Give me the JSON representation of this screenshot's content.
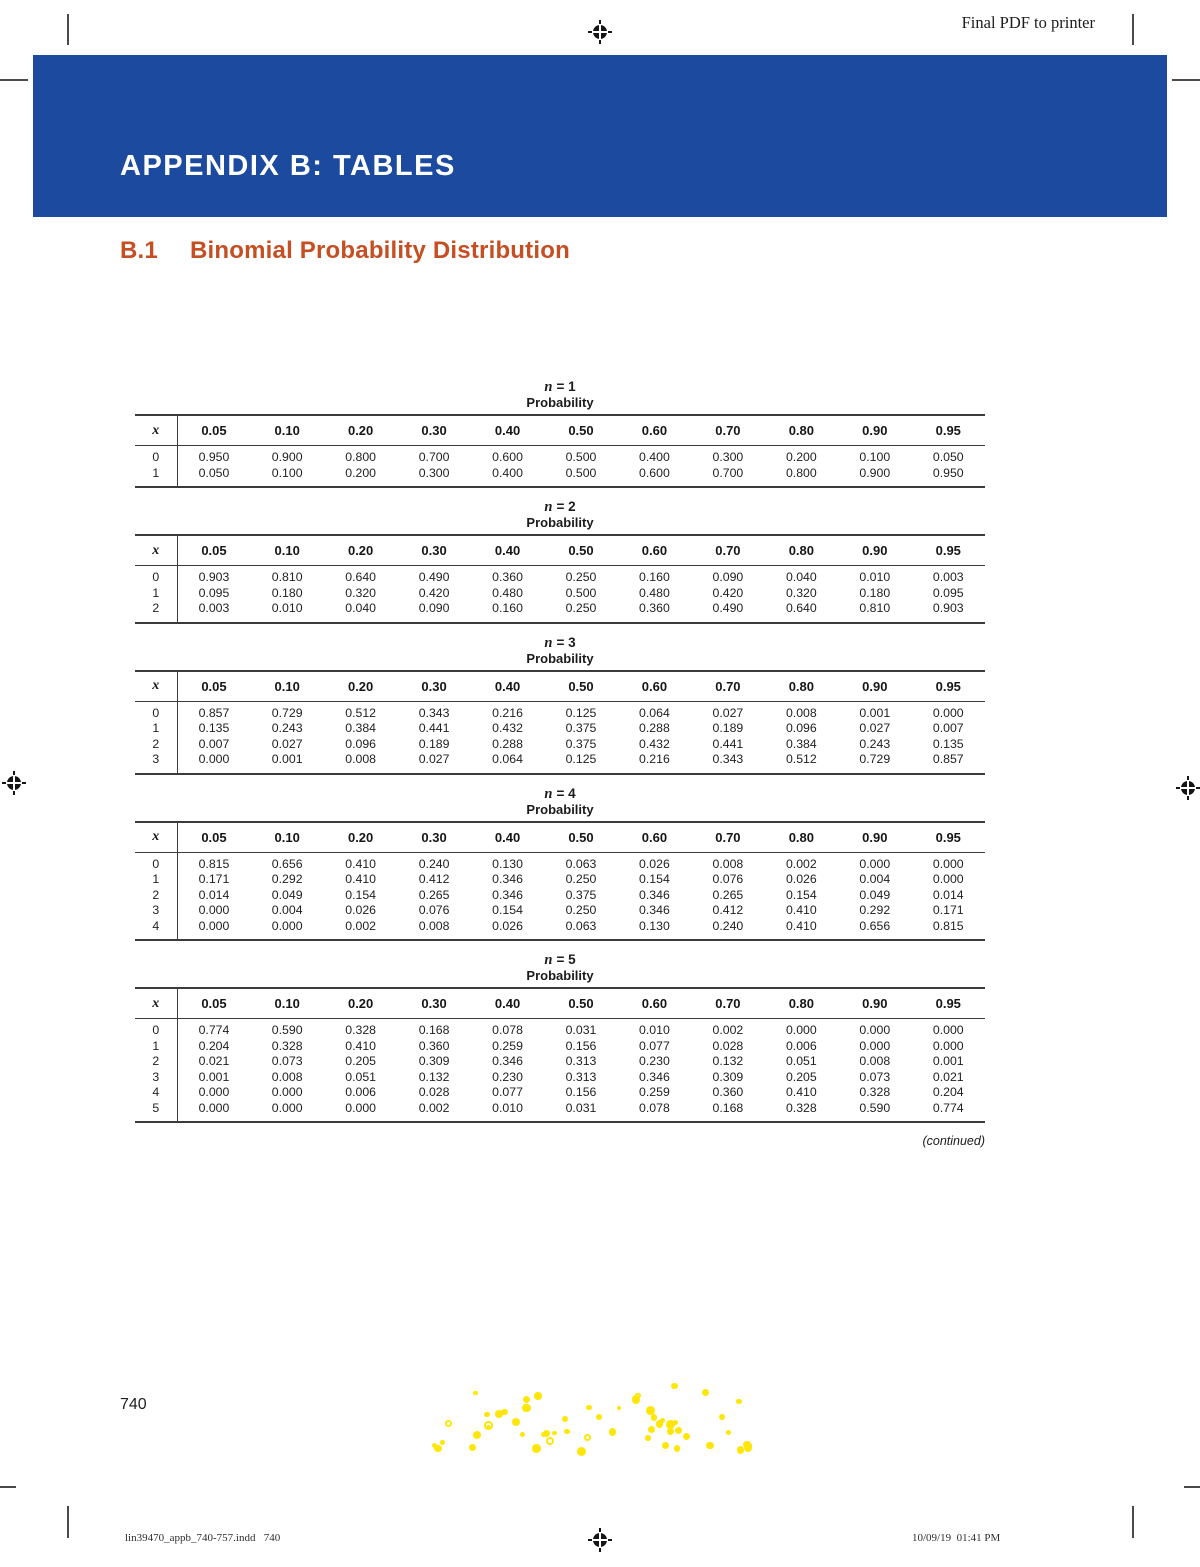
{
  "page": {
    "watermark": "Final PDF to printer",
    "page_number": "740",
    "continued": "(continued)",
    "footer_left": "lin39470_appb_740-757.indd   740",
    "footer_right": "10/09/19  01:41 PM"
  },
  "banner": {
    "title": "APPENDIX B: TABLES"
  },
  "section": {
    "number": "B.1",
    "title": "Binomial Probability Distribution"
  },
  "colors": {
    "banner_blue": "#1B4A9E",
    "heading_orange": "#C54E22",
    "rule_dark": "#3B3B3B",
    "dot_yellow": "#FFE60A"
  },
  "chart_data": [
    {
      "type": "table",
      "n_var": "n",
      "n_rest": "= 1",
      "subtitle": "Probability",
      "columns": [
        "x",
        "0.05",
        "0.10",
        "0.20",
        "0.30",
        "0.40",
        "0.50",
        "0.60",
        "0.70",
        "0.80",
        "0.90",
        "0.95"
      ],
      "rows": [
        [
          "0",
          "0.950",
          "0.900",
          "0.800",
          "0.700",
          "0.600",
          "0.500",
          "0.400",
          "0.300",
          "0.200",
          "0.100",
          "0.050"
        ],
        [
          "1",
          "0.050",
          "0.100",
          "0.200",
          "0.300",
          "0.400",
          "0.500",
          "0.600",
          "0.700",
          "0.800",
          "0.900",
          "0.950"
        ]
      ]
    },
    {
      "type": "table",
      "n_var": "n",
      "n_rest": "= 2",
      "subtitle": "Probability",
      "columns": [
        "x",
        "0.05",
        "0.10",
        "0.20",
        "0.30",
        "0.40",
        "0.50",
        "0.60",
        "0.70",
        "0.80",
        "0.90",
        "0.95"
      ],
      "rows": [
        [
          "0",
          "0.903",
          "0.810",
          "0.640",
          "0.490",
          "0.360",
          "0.250",
          "0.160",
          "0.090",
          "0.040",
          "0.010",
          "0.003"
        ],
        [
          "1",
          "0.095",
          "0.180",
          "0.320",
          "0.420",
          "0.480",
          "0.500",
          "0.480",
          "0.420",
          "0.320",
          "0.180",
          "0.095"
        ],
        [
          "2",
          "0.003",
          "0.010",
          "0.040",
          "0.090",
          "0.160",
          "0.250",
          "0.360",
          "0.490",
          "0.640",
          "0.810",
          "0.903"
        ]
      ]
    },
    {
      "type": "table",
      "n_var": "n",
      "n_rest": "= 3",
      "subtitle": "Probability",
      "columns": [
        "x",
        "0.05",
        "0.10",
        "0.20",
        "0.30",
        "0.40",
        "0.50",
        "0.60",
        "0.70",
        "0.80",
        "0.90",
        "0.95"
      ],
      "rows": [
        [
          "0",
          "0.857",
          "0.729",
          "0.512",
          "0.343",
          "0.216",
          "0.125",
          "0.064",
          "0.027",
          "0.008",
          "0.001",
          "0.000"
        ],
        [
          "1",
          "0.135",
          "0.243",
          "0.384",
          "0.441",
          "0.432",
          "0.375",
          "0.288",
          "0.189",
          "0.096",
          "0.027",
          "0.007"
        ],
        [
          "2",
          "0.007",
          "0.027",
          "0.096",
          "0.189",
          "0.288",
          "0.375",
          "0.432",
          "0.441",
          "0.384",
          "0.243",
          "0.135"
        ],
        [
          "3",
          "0.000",
          "0.001",
          "0.008",
          "0.027",
          "0.064",
          "0.125",
          "0.216",
          "0.343",
          "0.512",
          "0.729",
          "0.857"
        ]
      ]
    },
    {
      "type": "table",
      "n_var": "n",
      "n_rest": "= 4",
      "subtitle": "Probability",
      "columns": [
        "x",
        "0.05",
        "0.10",
        "0.20",
        "0.30",
        "0.40",
        "0.50",
        "0.60",
        "0.70",
        "0.80",
        "0.90",
        "0.95"
      ],
      "rows": [
        [
          "0",
          "0.815",
          "0.656",
          "0.410",
          "0.240",
          "0.130",
          "0.063",
          "0.026",
          "0.008",
          "0.002",
          "0.000",
          "0.000"
        ],
        [
          "1",
          "0.171",
          "0.292",
          "0.410",
          "0.412",
          "0.346",
          "0.250",
          "0.154",
          "0.076",
          "0.026",
          "0.004",
          "0.000"
        ],
        [
          "2",
          "0.014",
          "0.049",
          "0.154",
          "0.265",
          "0.346",
          "0.375",
          "0.346",
          "0.265",
          "0.154",
          "0.049",
          "0.014"
        ],
        [
          "3",
          "0.000",
          "0.004",
          "0.026",
          "0.076",
          "0.154",
          "0.250",
          "0.346",
          "0.412",
          "0.410",
          "0.292",
          "0.171"
        ],
        [
          "4",
          "0.000",
          "0.000",
          "0.002",
          "0.008",
          "0.026",
          "0.063",
          "0.130",
          "0.240",
          "0.410",
          "0.656",
          "0.815"
        ]
      ]
    },
    {
      "type": "table",
      "n_var": "n",
      "n_rest": "= 5",
      "subtitle": "Probability",
      "columns": [
        "x",
        "0.05",
        "0.10",
        "0.20",
        "0.30",
        "0.40",
        "0.50",
        "0.60",
        "0.70",
        "0.80",
        "0.90",
        "0.95"
      ],
      "rows": [
        [
          "0",
          "0.774",
          "0.590",
          "0.328",
          "0.168",
          "0.078",
          "0.031",
          "0.010",
          "0.002",
          "0.000",
          "0.000",
          "0.000"
        ],
        [
          "1",
          "0.204",
          "0.328",
          "0.410",
          "0.360",
          "0.259",
          "0.156",
          "0.077",
          "0.028",
          "0.006",
          "0.000",
          "0.000"
        ],
        [
          "2",
          "0.021",
          "0.073",
          "0.205",
          "0.309",
          "0.346",
          "0.313",
          "0.230",
          "0.132",
          "0.051",
          "0.008",
          "0.001"
        ],
        [
          "3",
          "0.001",
          "0.008",
          "0.051",
          "0.132",
          "0.230",
          "0.313",
          "0.346",
          "0.309",
          "0.205",
          "0.073",
          "0.021"
        ],
        [
          "4",
          "0.000",
          "0.000",
          "0.006",
          "0.028",
          "0.077",
          "0.156",
          "0.259",
          "0.360",
          "0.410",
          "0.328",
          "0.204"
        ],
        [
          "5",
          "0.000",
          "0.000",
          "0.000",
          "0.002",
          "0.010",
          "0.031",
          "0.078",
          "0.168",
          "0.328",
          "0.590",
          "0.774"
        ]
      ]
    }
  ]
}
